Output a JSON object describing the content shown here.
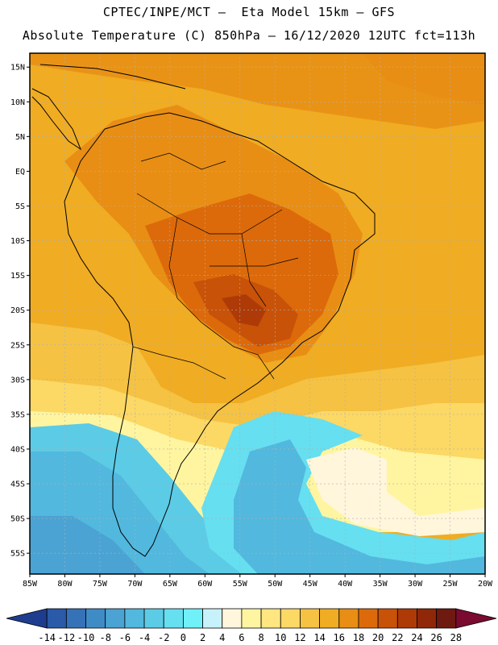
{
  "header": {
    "line1": "CPTEC/INPE/MCT –  Eta Model 15km – GFS",
    "line2": "Absolute Temperature (C) 850hPa – 16/12/2020 12UTC fct=113h"
  },
  "map": {
    "lat_labels": [
      "15N",
      "10N",
      "5N",
      "EQ",
      "5S",
      "10S",
      "15S",
      "20S",
      "25S",
      "30S",
      "35S",
      "40S",
      "45S",
      "50S",
      "55S"
    ],
    "lon_labels": [
      "85W",
      "80W",
      "75W",
      "70W",
      "65W",
      "60W",
      "55W",
      "50W",
      "45W",
      "40W",
      "35W",
      "30W",
      "25W",
      "20W"
    ],
    "lon_range": [
      -85,
      -20
    ],
    "lat_range": [
      -58,
      17
    ],
    "grid": true
  },
  "colorbar": {
    "labels": [
      "-14",
      "-12",
      "-10",
      "-8",
      "-6",
      "-4",
      "-2",
      "0",
      "2",
      "4",
      "6",
      "8",
      "10",
      "12",
      "14",
      "16",
      "18",
      "20",
      "22",
      "24",
      "26",
      "28"
    ],
    "colors": [
      "#1f3d8f",
      "#2a5aa8",
      "#3572b8",
      "#3f8bc6",
      "#4aa3d3",
      "#52b8de",
      "#5ccbe6",
      "#66dff0",
      "#70f0f8",
      "#c8f2fb",
      "#fff6dc",
      "#fff5a0",
      "#ffe680",
      "#fcd865",
      "#f5c243",
      "#f0ac22",
      "#e88e14",
      "#dc6a0a",
      "#c85208",
      "#ad3a07",
      "#8f2708",
      "#6e1a10",
      "#7a0a30"
    ],
    "semantic_colors": {
      "land_border": "#000000",
      "grid": "#c8c8c8"
    }
  }
}
